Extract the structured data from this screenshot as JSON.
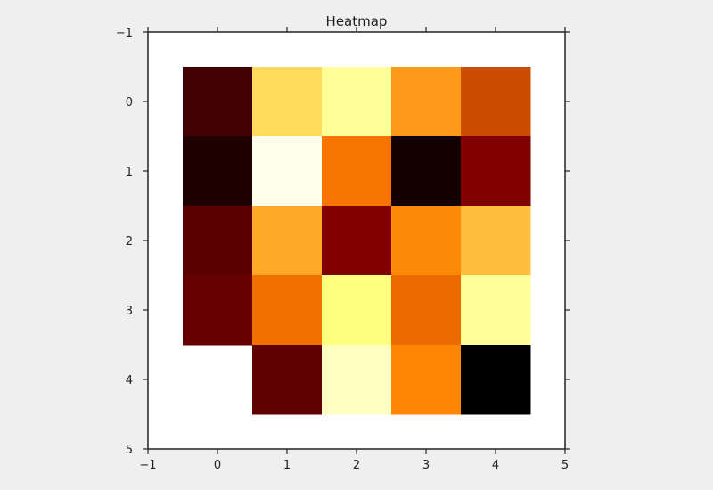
{
  "chart_data": {
    "type": "heatmap",
    "title": "Heatmap",
    "xlabel": "",
    "ylabel": "",
    "colormap": "afmhot",
    "xlim": [
      -1,
      5
    ],
    "ylim": [
      5,
      -1
    ],
    "y_inverted": true,
    "grid": false,
    "x_ticks": [
      "−1",
      "0",
      "1",
      "2",
      "3",
      "4",
      "5"
    ],
    "y_ticks": [
      "−1",
      "0",
      "1",
      "2",
      "3",
      "4",
      "5"
    ],
    "x_tick_values": [
      -1,
      0,
      1,
      2,
      3,
      4,
      5
    ],
    "y_tick_values": [
      -1,
      0,
      1,
      2,
      3,
      4,
      5
    ],
    "cells": [
      {
        "row": 0,
        "col": 0,
        "value": 0.13
      },
      {
        "row": 0,
        "col": 1,
        "value": 0.68
      },
      {
        "row": 0,
        "col": 2,
        "value": 0.8
      },
      {
        "row": 0,
        "col": 3,
        "value": 0.55
      },
      {
        "row": 0,
        "col": 4,
        "value": 0.4
      },
      {
        "row": 1,
        "col": 0,
        "value": 0.06
      },
      {
        "row": 1,
        "col": 1,
        "value": 0.96
      },
      {
        "row": 1,
        "col": 2,
        "value": 0.48
      },
      {
        "row": 1,
        "col": 3,
        "value": 0.04
      },
      {
        "row": 1,
        "col": 4,
        "value": 0.25
      },
      {
        "row": 2,
        "col": 0,
        "value": 0.18
      },
      {
        "row": 2,
        "col": 1,
        "value": 0.58
      },
      {
        "row": 2,
        "col": 2,
        "value": 0.25
      },
      {
        "row": 2,
        "col": 3,
        "value": 0.52
      },
      {
        "row": 2,
        "col": 4,
        "value": 0.62
      },
      {
        "row": 3,
        "col": 0,
        "value": 0.2
      },
      {
        "row": 3,
        "col": 1,
        "value": 0.47
      },
      {
        "row": 3,
        "col": 2,
        "value": 0.75
      },
      {
        "row": 3,
        "col": 3,
        "value": 0.46
      },
      {
        "row": 3,
        "col": 4,
        "value": 0.8
      },
      {
        "row": 4,
        "col": 1,
        "value": 0.19
      },
      {
        "row": 4,
        "col": 2,
        "value": 0.88
      },
      {
        "row": 4,
        "col": 3,
        "value": 0.51
      },
      {
        "row": 4,
        "col": 4,
        "value": 0.0
      }
    ],
    "colors": {
      "background": "#efefef",
      "axes_face": "#ffffff",
      "spine": "#222222"
    }
  }
}
